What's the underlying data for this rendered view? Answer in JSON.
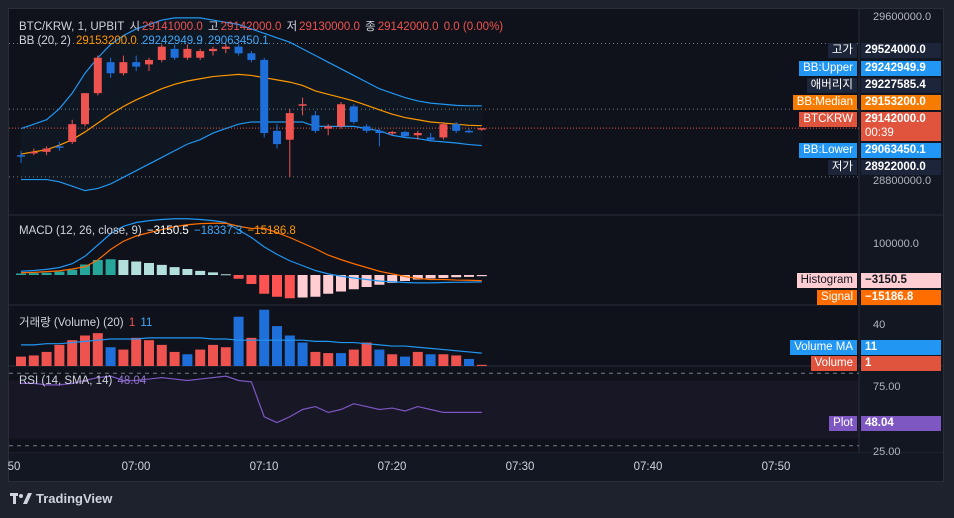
{
  "main_legend": {
    "symbol": "BTC/KRW, 1, UPBIT",
    "open_label": "시",
    "open": "29141000.0",
    "high_label": "고",
    "high": "29142000.0",
    "low_label": "저",
    "low": "29130000.0",
    "close_label": "종",
    "close": "29142000.0",
    "change": "0.0 (0.00%)"
  },
  "bb_legend": {
    "name": "BB (20, 2)",
    "median": "29153200.0",
    "upper": "29242949.9",
    "lower": "29063450.1"
  },
  "macd_legend": {
    "name": "MACD (12, 26, close, 9)",
    "histogram": "−3150.5",
    "macd": "−18337.3",
    "signal": "−15186.8"
  },
  "vol_legend": {
    "name": "거래량 (Volume) (20)",
    "volume": "1",
    "ma": "11"
  },
  "rsi_legend": {
    "name": "RSI (14, SMA, 14)",
    "value": "48.04"
  },
  "price_axis": {
    "ticks": [
      "29600000.0",
      "28800000.0"
    ]
  },
  "price_tags": [
    {
      "name": "고가",
      "value": "29524000.0",
      "name_bg": "#1c2539",
      "value_bg": "#1c2539",
      "color": "#ffffff"
    },
    {
      "name": "BB:Upper",
      "value": "29242949.9",
      "name_bg": "#2196f3",
      "value_bg": "#2196f3",
      "color": "#ffffff"
    },
    {
      "name": "애버리지",
      "value": "29227585.4",
      "name_bg": "#1c2539",
      "value_bg": "#1c2539",
      "color": "#ffffff"
    },
    {
      "name": "BB:Median",
      "value": "29153200.0",
      "name_bg": "#f57c00",
      "value_bg": "#f57c00",
      "color": "#ffffff"
    },
    {
      "name": "BTCKRW",
      "value": "29142000.0",
      "extra": "00:39",
      "name_bg": "#e0533c",
      "value_bg": "#e0533c",
      "color": "#ffffff"
    },
    {
      "name": "BB:Lower",
      "value": "29063450.1",
      "name_bg": "#2196f3",
      "value_bg": "#2196f3",
      "color": "#ffffff"
    },
    {
      "name": "저가",
      "value": "28922000.0",
      "name_bg": "#1c2539",
      "value_bg": "#1c2539",
      "color": "#ffffff"
    }
  ],
  "macd_axis": {
    "tick": "100000.0"
  },
  "macd_tags": [
    {
      "name": "Histogram",
      "value": "−3150.5",
      "name_bg": "#ffcdd2",
      "value_bg": "#ffcdd2",
      "color": "#131722"
    },
    {
      "name": "Signal",
      "value": "−15186.8",
      "name_bg": "#ff6d00",
      "value_bg": "#ff6d00",
      "color": "#ffffff"
    }
  ],
  "vol_axis": {
    "tick": "40"
  },
  "vol_tags": [
    {
      "name": "Volume MA",
      "value": "11",
      "name_bg": "#2196f3",
      "value_bg": "#2196f3",
      "color": "#ffffff"
    },
    {
      "name": "Volume",
      "value": "1",
      "name_bg": "#e0533c",
      "value_bg": "#e0533c",
      "color": "#ffffff"
    }
  ],
  "rsi_axis": {
    "ticks": [
      "75.00",
      "25.00"
    ]
  },
  "rsi_tags": [
    {
      "name": "Plot",
      "value": "48.04",
      "name_bg": "#7e57c2",
      "value_bg": "#7e57c2",
      "color": "#ffffff"
    }
  ],
  "time_axis": {
    "labels": [
      "50",
      "07:00",
      "07:10",
      "07:20",
      "07:30",
      "07:40",
      "07:50"
    ]
  },
  "brand": {
    "name": "TradingView"
  },
  "colors": {
    "up": "#ef5350",
    "down": "#1e6fd9",
    "bb_band": "#2196f3",
    "bb_median": "#ff9800",
    "macd": "#2196f3",
    "signal": "#ff6d00",
    "rsi": "#7e57c2",
    "vol_ma": "#2196f3"
  },
  "chart_data": [
    {
      "type": "candlestick",
      "title": "BTC/KRW, 1, UPBIT",
      "ylim": [
        28750000,
        29680000
      ],
      "x": [
        "06:54",
        "06:55",
        "06:56",
        "06:57",
        "06:58",
        "06:59",
        "07:00",
        "07:01",
        "07:02",
        "07:03",
        "07:04",
        "07:05",
        "07:06",
        "07:07",
        "07:08",
        "07:09",
        "07:10",
        "07:11",
        "07:12",
        "07:13",
        "07:14",
        "07:15",
        "07:16",
        "07:17",
        "07:18",
        "07:19",
        "07:20",
        "07:21",
        "07:22",
        "07:23",
        "07:24",
        "07:25",
        "07:26",
        "07:27",
        "07:28",
        "07:29",
        "07:30"
      ],
      "ohlc": [
        [
          29020000,
          29040000,
          28985000,
          29015000
        ],
        [
          29035000,
          29050000,
          29020000,
          29035000
        ],
        [
          29035000,
          29060000,
          29020000,
          29050000
        ],
        [
          29060000,
          29080000,
          29040000,
          29055000
        ],
        [
          29080000,
          29180000,
          29070000,
          29160000
        ],
        [
          29160000,
          29300000,
          29150000,
          29300000
        ],
        [
          29300000,
          29470000,
          29290000,
          29460000
        ],
        [
          29440000,
          29460000,
          29370000,
          29390000
        ],
        [
          29390000,
          29470000,
          29380000,
          29440000
        ],
        [
          29440000,
          29470000,
          29400000,
          29420000
        ],
        [
          29430000,
          29460000,
          29400000,
          29450000
        ],
        [
          29450000,
          29520000,
          29440000,
          29510000
        ],
        [
          29500000,
          29520000,
          29450000,
          29460000
        ],
        [
          29460000,
          29520000,
          29450000,
          29500000
        ],
        [
          29460000,
          29500000,
          29450000,
          29490000
        ],
        [
          29490000,
          29510000,
          29470000,
          29500000
        ],
        [
          29500000,
          29524000,
          29480000,
          29510000
        ],
        [
          29510000,
          29520000,
          29470000,
          29480000
        ],
        [
          29480000,
          29490000,
          29440000,
          29450000
        ],
        [
          29450000,
          29460000,
          29100000,
          29120000
        ],
        [
          29130000,
          29160000,
          29050000,
          29070000
        ],
        [
          29090000,
          29230000,
          28922000,
          29210000
        ],
        [
          29250000,
          29280000,
          29200000,
          29250000
        ],
        [
          29200000,
          29220000,
          29120000,
          29130000
        ],
        [
          29140000,
          29160000,
          29110000,
          29150000
        ],
        [
          29150000,
          29260000,
          29140000,
          29250000
        ],
        [
          29240000,
          29250000,
          29160000,
          29170000
        ],
        [
          29150000,
          29160000,
          29120000,
          29130000
        ],
        [
          29130000,
          29140000,
          29060000,
          29120000
        ],
        [
          29120000,
          29130000,
          29110000,
          29125000
        ],
        [
          29125000,
          29130000,
          29100000,
          29105000
        ],
        [
          29110000,
          29130000,
          29090000,
          29120000
        ],
        [
          29100000,
          29120000,
          29080000,
          29090000
        ],
        [
          29100000,
          29170000,
          29090000,
          29160000
        ],
        [
          29160000,
          29170000,
          29120000,
          29130000
        ],
        [
          29130000,
          29140000,
          29120000,
          29125000
        ],
        [
          29141000,
          29142000,
          29130000,
          29142000
        ]
      ],
      "bb_upper": [
        29140000,
        29160000,
        29180000,
        29230000,
        29300000,
        29390000,
        29460000,
        29520000,
        29560000,
        29590000,
        29610000,
        29630000,
        29640000,
        29640000,
        29640000,
        29630000,
        29620000,
        29610000,
        29590000,
        29570000,
        29550000,
        29530000,
        29500000,
        29470000,
        29440000,
        29410000,
        29380000,
        29350000,
        29320000,
        29300000,
        29280000,
        29265000,
        29255000,
        29250000,
        29245000,
        29243000,
        29242949.9
      ],
      "bb_median": [
        29025000,
        29035000,
        29045000,
        29065000,
        29090000,
        29125000,
        29165000,
        29205000,
        29240000,
        29270000,
        29295000,
        29320000,
        29340000,
        29355000,
        29365000,
        29375000,
        29380000,
        29385000,
        29380000,
        29370000,
        29360000,
        29350000,
        29335000,
        29310000,
        29295000,
        29280000,
        29265000,
        29245000,
        29225000,
        29205000,
        29190000,
        29180000,
        29170000,
        29165000,
        29160000,
        29155000,
        29153200
      ],
      "bb_lower": [
        28910000,
        28910000,
        28910000,
        28900000,
        28880000,
        28860000,
        28870000,
        28890000,
        28920000,
        28950000,
        28980000,
        29010000,
        29040000,
        29070000,
        29090000,
        29120000,
        29140000,
        29160000,
        29170000,
        29170000,
        29170000,
        29170000,
        29170000,
        29150000,
        29150000,
        29150000,
        29150000,
        29140000,
        29130000,
        29110000,
        29100000,
        29095000,
        29085000,
        29080000,
        29075000,
        29068000,
        29063450.1
      ]
    },
    {
      "type": "bar",
      "title": "MACD (12, 26, close, 9)",
      "histogram": [
        4000,
        5000,
        6000,
        9000,
        14000,
        28000,
        40000,
        42000,
        40000,
        36000,
        32000,
        27000,
        21000,
        16000,
        11000,
        7000,
        2000,
        -10000,
        -24000,
        -50000,
        -58000,
        -62000,
        -60000,
        -58000,
        -50000,
        -44000,
        -38000,
        -32000,
        -26000,
        -21000,
        -16000,
        -12000,
        -9000,
        -8000,
        -6000,
        -5000,
        -3150.5
      ],
      "macd": [
        10000,
        12000,
        15000,
        20000,
        30000,
        50000,
        80000,
        110000,
        130000,
        140000,
        145000,
        148000,
        150000,
        150000,
        148000,
        145000,
        140000,
        120000,
        100000,
        75000,
        55000,
        38000,
        25000,
        12000,
        3000,
        -3000,
        -8000,
        -12000,
        -16000,
        -18000,
        -20000,
        -21000,
        -21000,
        -20000,
        -19500,
        -19000,
        -18337.3
      ],
      "signal": [
        6000,
        7000,
        9000,
        11000,
        16000,
        22000,
        40000,
        68000,
        90000,
        104000,
        113000,
        121000,
        129000,
        134000,
        137000,
        138000,
        138000,
        130000,
        124000,
        125000,
        113000,
        100000,
        85000,
        70000,
        53000,
        41000,
        30000,
        20000,
        10000,
        3000,
        -4000,
        -9000,
        -12000,
        -12000,
        -13500,
        -14000,
        -15186.8
      ],
      "ylim": [
        -80000,
        160000
      ],
      "yticks": [
        100000
      ]
    },
    {
      "type": "bar",
      "title": "거래량 (Volume) (20)",
      "volume": [
        8,
        9,
        12,
        18,
        22,
        26,
        28,
        16,
        14,
        24,
        22,
        18,
        12,
        10,
        14,
        18,
        16,
        42,
        24,
        48,
        34,
        26,
        20,
        12,
        11,
        11,
        14,
        20,
        14,
        10,
        8,
        12,
        10,
        10,
        9,
        6,
        1
      ],
      "volume_up": [
        true,
        true,
        true,
        true,
        true,
        true,
        true,
        false,
        true,
        true,
        true,
        true,
        true,
        false,
        true,
        true,
        true,
        false,
        true,
        false,
        false,
        false,
        false,
        true,
        true,
        false,
        true,
        true,
        false,
        true,
        false,
        true,
        false,
        true,
        true,
        false,
        true
      ],
      "volume_ma": [
        18,
        18,
        19,
        19,
        20,
        21,
        22,
        23,
        23,
        23,
        24,
        24,
        24,
        24,
        24,
        23,
        23,
        22,
        22,
        22,
        22,
        22,
        22,
        21,
        21,
        20,
        20,
        19,
        18,
        17,
        17,
        16,
        15,
        14,
        13,
        12,
        11
      ],
      "ylim": [
        0,
        52
      ],
      "yticks": [
        40
      ]
    },
    {
      "type": "line",
      "title": "RSI (14, SMA, 14)",
      "rsi": [
        68,
        68,
        67,
        67,
        68,
        70,
        72,
        73,
        70,
        70,
        71,
        72,
        71,
        70,
        71,
        72,
        73,
        70,
        69,
        45,
        41,
        45,
        50,
        52,
        48,
        50,
        54,
        52,
        50,
        51,
        49,
        52,
        50,
        48,
        48,
        48,
        48.04
      ],
      "ylim": [
        20,
        80
      ],
      "yticks": [
        75,
        25
      ],
      "bands": [
        70,
        30
      ]
    }
  ]
}
